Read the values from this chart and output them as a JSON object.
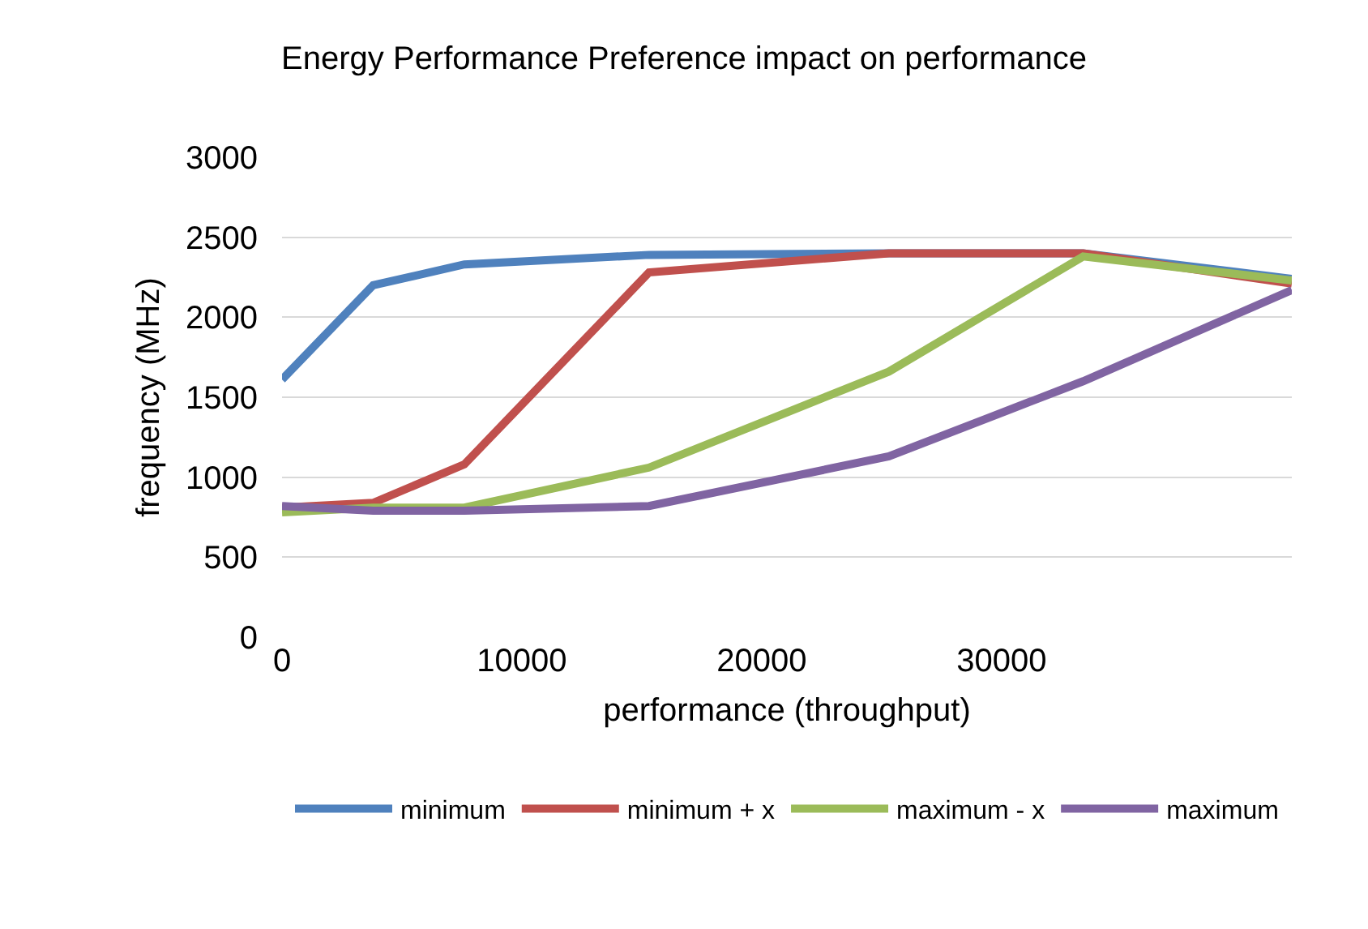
{
  "chart_data": {
    "type": "line",
    "title": "Energy Performance Preference impact on performance",
    "xlabel": "performance (throughput)",
    "ylabel": "frequency (MHz)",
    "x": [
      0,
      3800,
      7600,
      15300,
      25300,
      33400,
      42100
    ],
    "series": [
      {
        "name": "minimum",
        "color": "#4f81bd",
        "values": [
          1610,
          2200,
          2330,
          2390,
          2400,
          2400,
          2240
        ]
      },
      {
        "name": "minimum + x",
        "color": "#c0504d",
        "values": [
          810,
          840,
          1080,
          2280,
          2400,
          2400,
          2210
        ]
      },
      {
        "name": "maximum - x",
        "color": "#9bbb59",
        "values": [
          780,
          810,
          810,
          1060,
          1660,
          2380,
          2230
        ]
      },
      {
        "name": "maximum",
        "color": "#8064a2",
        "values": [
          820,
          790,
          790,
          820,
          1130,
          1600,
          2170
        ]
      }
    ],
    "xlim": [
      0,
      42100
    ],
    "xticks": [
      0,
      10000,
      20000,
      30000
    ],
    "ylim": [
      0,
      3000
    ],
    "yticks": [
      0,
      500,
      1000,
      1500,
      2000,
      2500,
      3000
    ],
    "grid": "y",
    "legend": "bottom",
    "marker": "none",
    "line_style": "solid"
  }
}
